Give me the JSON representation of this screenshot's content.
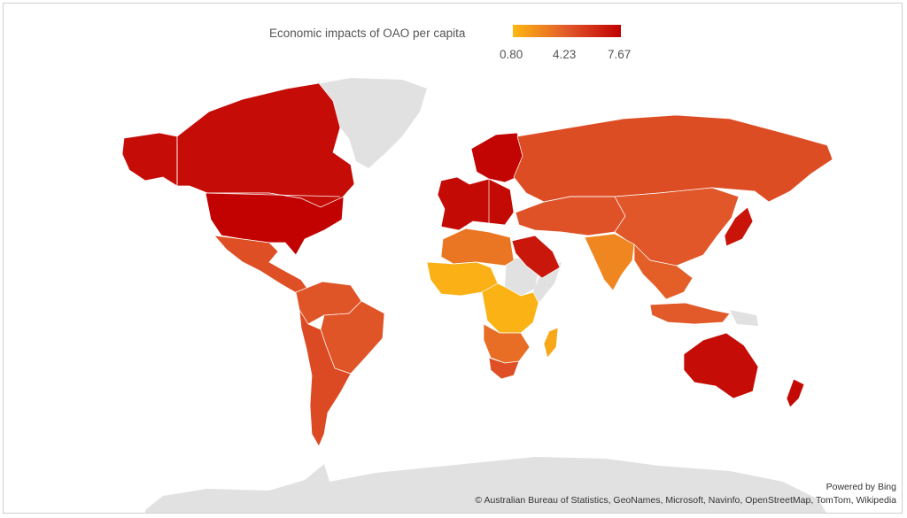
{
  "legend": {
    "title": "Economic impacts of OAO per capita",
    "min_label": "0.80",
    "mid_label": "4.23",
    "max_label": "7.67",
    "min_value": 0.8,
    "mid_value": 4.23,
    "max_value": 7.67,
    "colors": {
      "low": "#fdb813",
      "mid": "#e2592a",
      "high": "#c00000",
      "no_data": "#e1e1e1"
    }
  },
  "attribution": {
    "powered_by": "Powered by Bing",
    "sources": "© Australian Bureau of Statistics, GeoNames, Microsoft, Navinfo, OpenStreetMap, TomTom, Wikipedia"
  },
  "regions": [
    {
      "name": "alaska",
      "value": 7.2
    },
    {
      "name": "canada",
      "value": 7.2
    },
    {
      "name": "united-states",
      "value": 7.6
    },
    {
      "name": "mexico-central-america",
      "value": 4.6
    },
    {
      "name": "south-america-north",
      "value": 4.4
    },
    {
      "name": "brazil",
      "value": 4.4
    },
    {
      "name": "south-america-south",
      "value": 4.8
    },
    {
      "name": "western-europe",
      "value": 7.3
    },
    {
      "name": "scandinavia",
      "value": 7.5
    },
    {
      "name": "russia",
      "value": 4.7
    },
    {
      "name": "central-asia",
      "value": 4.5
    },
    {
      "name": "china-mongolia",
      "value": 4.3
    },
    {
      "name": "arabian-peninsula",
      "value": 6.8
    },
    {
      "name": "north-africa",
      "value": 3.2
    },
    {
      "name": "west-africa",
      "value": 1.1
    },
    {
      "name": "central-east-africa",
      "value": 1.0
    },
    {
      "name": "southern-africa",
      "value": 3.5
    },
    {
      "name": "south-africa",
      "value": 4.6
    },
    {
      "name": "madagascar",
      "value": 1.4
    },
    {
      "name": "india",
      "value": 2.6
    },
    {
      "name": "southeast-asia",
      "value": 4.0
    },
    {
      "name": "japan",
      "value": 6.9
    },
    {
      "name": "indonesia",
      "value": 4.2
    },
    {
      "name": "australia",
      "value": 7.2
    },
    {
      "name": "new-zealand",
      "value": 7.3
    }
  ]
}
